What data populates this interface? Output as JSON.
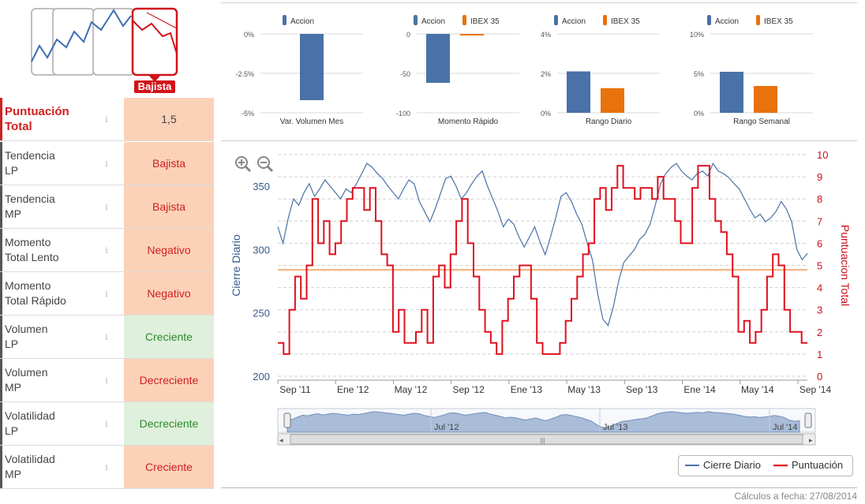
{
  "trend_widget": {
    "selected_label": "Bajista",
    "accent": "#d0141a"
  },
  "indicators": [
    {
      "label": "Puntuación\nTotal",
      "value": "1,5",
      "state": "score"
    },
    {
      "label": "Tendencia\nLP",
      "value": "Bajista",
      "state": "neg"
    },
    {
      "label": "Tendencia\nMP",
      "value": "Bajista",
      "state": "neg"
    },
    {
      "label": "Momento\nTotal Lento",
      "value": "Negativo",
      "state": "neg"
    },
    {
      "label": "Momento\nTotal Rápido",
      "value": "Negativo",
      "state": "neg"
    },
    {
      "label": "Volumen\nLP",
      "value": "Creciente",
      "state": "pos"
    },
    {
      "label": "Volumen\nMP",
      "value": "Decreciente",
      "state": "neg"
    },
    {
      "label": "Volatilidad\nLP",
      "value": "Decreciente",
      "state": "pos"
    },
    {
      "label": "Volatilidad\nMP",
      "value": "Creciente",
      "state": "neg"
    }
  ],
  "info_glyph": "i",
  "colors": {
    "accion": "#4a72a8",
    "ibex": "#e8720c",
    "score_line": "#e0101e",
    "price_line": "#4a72a8",
    "ref_line": "#f2b98e"
  },
  "chart_data": [
    {
      "type": "bar",
      "title": "Var. Volumen Mes",
      "legend": [
        "Accion"
      ],
      "yticks": [
        "0%",
        "-2.5%",
        "-5%"
      ],
      "ylim": [
        -5,
        0
      ],
      "series": [
        {
          "name": "Accion",
          "values": [
            -4.2
          ]
        }
      ]
    },
    {
      "type": "bar",
      "title": "Momento Rápido",
      "legend": [
        "Accion",
        "IBEX 35"
      ],
      "yticks": [
        "0",
        "-50",
        "-100"
      ],
      "ylim": [
        -100,
        0
      ],
      "series": [
        {
          "name": "Accion",
          "values": [
            -62
          ]
        },
        {
          "name": "IBEX 35",
          "values": [
            -2
          ]
        }
      ]
    },
    {
      "type": "bar",
      "title": "Rango Diario",
      "legend": [
        "Accion",
        "IBEX 35"
      ],
      "yticks": [
        "4%",
        "2%",
        "0%"
      ],
      "ylim": [
        0,
        4
      ],
      "series": [
        {
          "name": "Accion",
          "values": [
            2.1
          ]
        },
        {
          "name": "IBEX 35",
          "values": [
            1.25
          ]
        }
      ]
    },
    {
      "type": "bar",
      "title": "Rango Semanal",
      "legend": [
        "Accion",
        "IBEX 35"
      ],
      "yticks": [
        "10%",
        "5%",
        "0%"
      ],
      "ylim": [
        0,
        10
      ],
      "series": [
        {
          "name": "Accion",
          "values": [
            5.2
          ]
        },
        {
          "name": "IBEX 35",
          "values": [
            3.4
          ]
        }
      ]
    },
    {
      "type": "line",
      "ylabel": "Cierre Diario",
      "y2label": "Puntuacion Total",
      "ylim": [
        200,
        375
      ],
      "y2lim": [
        0,
        10
      ],
      "yticks": [
        "200",
        "250",
        "300",
        "350"
      ],
      "y2ticks": [
        "0",
        "1",
        "2",
        "3",
        "4",
        "5",
        "6",
        "7",
        "8",
        "9",
        "10"
      ],
      "xticks": [
        "Sep '11",
        "Ene '12",
        "May '12",
        "Sep '12",
        "Ene '13",
        "May '13",
        "Sep '13",
        "Ene '14",
        "May '14",
        "Sep '14"
      ],
      "reference_value": 4.8,
      "series": [
        {
          "name": "Cierre Diario",
          "values": [
            318,
            305,
            325,
            340,
            335,
            345,
            352,
            342,
            348,
            355,
            350,
            345,
            340,
            348,
            345,
            352,
            360,
            368,
            365,
            360,
            356,
            350,
            345,
            340,
            348,
            355,
            352,
            338,
            330,
            322,
            332,
            344,
            356,
            358,
            350,
            340,
            345,
            352,
            358,
            362,
            350,
            340,
            330,
            318,
            324,
            320,
            310,
            302,
            310,
            318,
            306,
            296,
            310,
            325,
            342,
            345,
            338,
            328,
            320,
            305,
            292,
            265,
            245,
            240,
            255,
            275,
            290,
            295,
            300,
            308,
            312,
            320,
            335,
            352,
            360,
            365,
            368,
            362,
            358,
            355,
            360,
            362,
            358,
            368,
            362,
            360,
            357,
            352,
            348,
            340,
            332,
            325,
            328,
            322,
            325,
            330,
            338,
            332,
            322,
            300,
            292,
            297
          ]
        },
        {
          "name": "Puntuación",
          "values": [
            1.5,
            1.0,
            3.0,
            4.5,
            3.5,
            5.0,
            8.0,
            6.0,
            7.0,
            5.5,
            6.0,
            7.0,
            8.0,
            8.5,
            8.5,
            7.5,
            8.5,
            7.0,
            5.5,
            5.0,
            2.0,
            3.0,
            1.5,
            1.5,
            2.0,
            3.0,
            1.5,
            4.5,
            5.0,
            4.0,
            5.5,
            7.0,
            8.0,
            6.0,
            4.5,
            3.0,
            2.0,
            1.5,
            1.0,
            2.5,
            3.5,
            4.5,
            5.0,
            5.0,
            3.5,
            1.5,
            1.0,
            1.0,
            1.0,
            1.5,
            2.5,
            3.5,
            4.5,
            5.5,
            6.0,
            8.0,
            8.5,
            7.5,
            8.5,
            9.5,
            8.5,
            8.5,
            8.0,
            8.5,
            8.5,
            8.0,
            9.0,
            8.0,
            8.0,
            7.0,
            6.0,
            6.0,
            8.5,
            9.5,
            9.5,
            8.0,
            7.0,
            6.5,
            5.5,
            4.5,
            2.0,
            2.5,
            1.5,
            2.0,
            3.0,
            4.5,
            5.5,
            5.0,
            3.0,
            2.0,
            2.0,
            1.5
          ]
        }
      ],
      "legend": [
        "Cierre Diario",
        "Puntuación"
      ],
      "navigator_ticks": [
        "Jul '12",
        "Jul '13",
        "Jul '14"
      ]
    }
  ],
  "footer": {
    "calc_date": "Cálculos a fecha: 27/08/2014"
  }
}
